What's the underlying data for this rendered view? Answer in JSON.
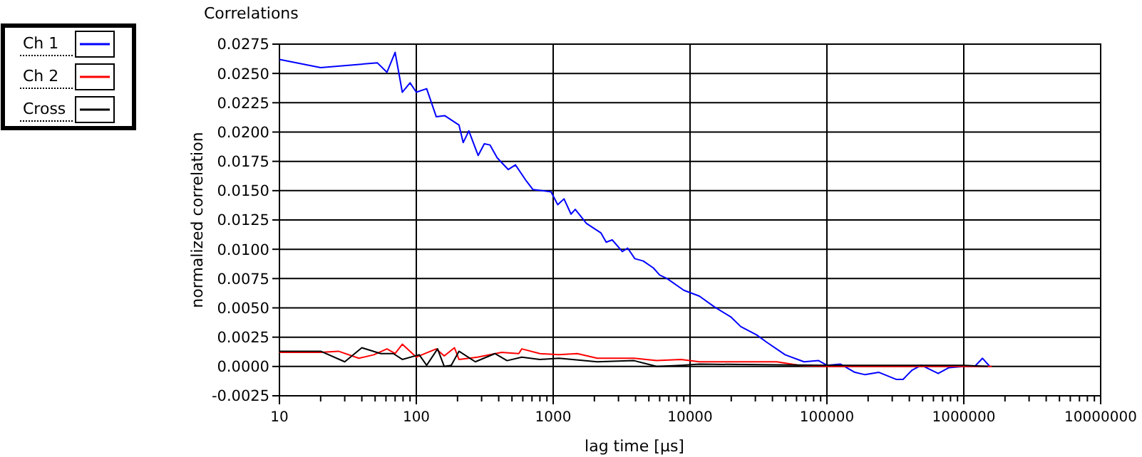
{
  "chart_data": {
    "type": "line",
    "title": "Correlations",
    "xlabel": "lag time [µs]",
    "ylabel": "normalized correlation",
    "log": "x",
    "grid": true,
    "legend": "top left",
    "line_style": "solid",
    "marker": "none",
    "xlim": [
      10,
      10000000
    ],
    "ylim": [
      -0.0025,
      0.0275
    ],
    "xticks": [
      10,
      {
        "value": 20,
        "label": null
      },
      {
        "value": 30,
        "label": null
      },
      {
        "value": 40,
        "label": null
      },
      {
        "value": 50,
        "label": null
      },
      {
        "value": 60,
        "label": null
      },
      {
        "value": 70,
        "label": null
      },
      {
        "value": 80,
        "label": null
      },
      {
        "value": 90,
        "label": null
      },
      100,
      {
        "value": 200,
        "label": null
      },
      {
        "value": 300,
        "label": null
      },
      {
        "value": 400,
        "label": null
      },
      {
        "value": 500,
        "label": null
      },
      {
        "value": 600,
        "label": null
      },
      {
        "value": 700,
        "label": null
      },
      {
        "value": 800,
        "label": null
      },
      {
        "value": 900,
        "label": null
      },
      1000,
      {
        "value": 2000,
        "label": null
      },
      {
        "value": 3000,
        "label": null
      },
      {
        "value": 4000,
        "label": null
      },
      {
        "value": 5000,
        "label": null
      },
      {
        "value": 6000,
        "label": null
      },
      {
        "value": 7000,
        "label": null
      },
      {
        "value": 8000,
        "label": null
      },
      {
        "value": 9000,
        "label": null
      },
      10000,
      {
        "value": 20000,
        "label": null
      },
      {
        "value": 30000,
        "label": null
      },
      {
        "value": 40000,
        "label": null
      },
      {
        "value": 50000,
        "label": null
      },
      {
        "value": 60000,
        "label": null
      },
      {
        "value": 70000,
        "label": null
      },
      {
        "value": 80000,
        "label": null
      },
      {
        "value": 90000,
        "label": null
      },
      100000,
      {
        "value": 200000,
        "label": null
      },
      {
        "value": 300000,
        "label": null
      },
      {
        "value": 400000,
        "label": null
      },
      {
        "value": 500000,
        "label": null
      },
      {
        "value": 600000,
        "label": null
      },
      {
        "value": 700000,
        "label": null
      },
      {
        "value": 800000,
        "label": null
      },
      {
        "value": 900000,
        "label": null
      },
      1000000,
      {
        "value": 2000000,
        "label": null
      },
      {
        "value": 3000000,
        "label": null
      },
      {
        "value": 4000000,
        "label": null
      },
      {
        "value": 5000000,
        "label": null
      },
      {
        "value": 6000000,
        "label": null
      },
      {
        "value": 7000000,
        "label": null
      },
      {
        "value": 8000000,
        "label": null
      },
      {
        "value": 9000000,
        "label": null
      },
      10000000
    ],
    "yticks": [
      {
        "value": -0.0025,
        "label": "-0.0025"
      },
      {
        "value": 0,
        "label": "0.0000"
      },
      {
        "value": 0.0025,
        "label": "0.0025"
      },
      {
        "value": 0.005,
        "label": "0.0050"
      },
      {
        "value": 0.0075,
        "label": "0.0075"
      },
      {
        "value": 0.01,
        "label": "0.0100"
      },
      {
        "value": 0.0125,
        "label": "0.0125"
      },
      {
        "value": 0.015,
        "label": "0.0150"
      },
      {
        "value": 0.0175,
        "label": "0.0175"
      },
      {
        "value": 0.02,
        "label": "0.0200"
      },
      {
        "value": 0.0225,
        "label": "0.0225"
      },
      {
        "value": 0.025,
        "label": "0.0250"
      },
      {
        "value": 0.0275,
        "label": "0.0275"
      }
    ],
    "series": [
      {
        "name": "Ch 1",
        "color": "#0000ff",
        "x": [
          10,
          20,
          52,
          61,
          70,
          79,
          90,
          100,
          119,
          140,
          161,
          205,
          220,
          242,
          283,
          314,
          345,
          390,
          470,
          530,
          630,
          710,
          965,
          1080,
          1200,
          1350,
          1450,
          1750,
          2230,
          2440,
          2700,
          3200,
          3500,
          3950,
          4550,
          5400,
          6000,
          6800,
          9000,
          11700,
          15000,
          20000,
          23500,
          30600,
          36000,
          49500,
          68000,
          87000,
          100000,
          126000,
          160000,
          190000,
          240000,
          320000,
          360000,
          420000,
          490000,
          650000,
          780000,
          1000000,
          1200000,
          1370000,
          1550000
        ],
        "values": [
          0.0262,
          0.0255,
          0.0259,
          0.0251,
          0.0268,
          0.0234,
          0.0242,
          0.0234,
          0.0237,
          0.0213,
          0.0214,
          0.0206,
          0.0191,
          0.0201,
          0.018,
          0.019,
          0.0189,
          0.0178,
          0.0168,
          0.0172,
          0.0159,
          0.0151,
          0.0149,
          0.0138,
          0.0143,
          0.013,
          0.0134,
          0.0122,
          0.0114,
          0.0106,
          0.0108,
          0.0098,
          0.0101,
          0.0092,
          0.009,
          0.0084,
          0.0078,
          0.0075,
          0.0065,
          0.006,
          0.0051,
          0.0042,
          0.0034,
          0.0027,
          0.0021,
          0.001,
          0.0004,
          0.0005,
          0.0001,
          0.0002,
          -0.0005,
          -0.0007,
          -0.0005,
          -0.0011,
          -0.0011,
          -0.0003,
          0.0001,
          -0.0006,
          -0.0001,
          0,
          0,
          0.0007,
          0
        ]
      },
      {
        "name": "Ch 2",
        "color": "#ff0000",
        "x": [
          10,
          20,
          27,
          38,
          49,
          61,
          70,
          79,
          100,
          140,
          160,
          190,
          205,
          280,
          420,
          560,
          590,
          800,
          1100,
          1500,
          2100,
          3900,
          5700,
          8600,
          11700,
          13800,
          43000,
          63000,
          100000,
          1000000,
          1600000
        ],
        "values": [
          0.0012,
          0.0012,
          0.0013,
          0.0007,
          0.001,
          0.0015,
          0.0011,
          0.0019,
          0.0008,
          0.0015,
          0.0009,
          0.0016,
          0.0006,
          0.0008,
          0.0012,
          0.0011,
          0.0015,
          0.0011,
          0.001,
          0.0011,
          0.0007,
          0.0007,
          0.0005,
          0.0006,
          0.0004,
          0.0004,
          0.0004,
          0.0001,
          0,
          0,
          0
        ]
      },
      {
        "name": "Cross",
        "color": "#000000",
        "x": [
          10,
          20,
          30,
          40,
          55,
          68,
          79,
          105,
          119,
          143,
          160,
          180,
          205,
          270,
          375,
          460,
          590,
          800,
          1100,
          2100,
          3900,
          5700,
          8600,
          11700,
          100000,
          1000000,
          1500000
        ],
        "values": [
          0.0013,
          0.0013,
          0.0004,
          0.0016,
          0.0011,
          0.0011,
          0.0006,
          0.001,
          0.0001,
          0.0015,
          0,
          0.0001,
          0.0013,
          0.0004,
          0.0011,
          0.0005,
          0.0008,
          0.0006,
          0.0007,
          0.0004,
          0.0005,
          0,
          0.0001,
          0.0002,
          0.0001,
          0.0001,
          0
        ]
      }
    ]
  }
}
